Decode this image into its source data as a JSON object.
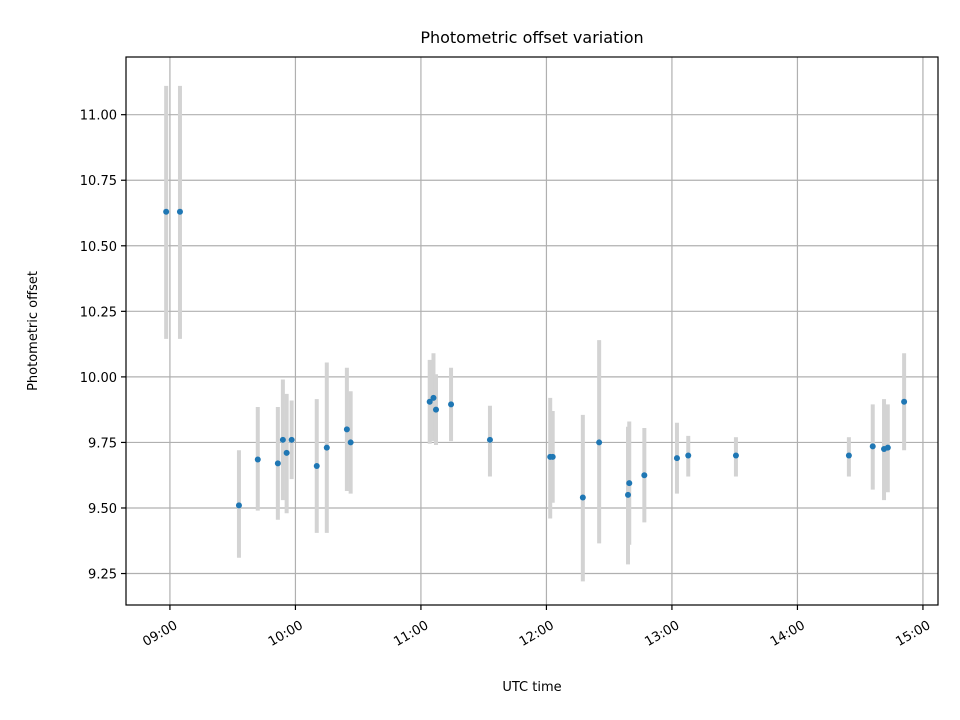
{
  "chart_data": {
    "type": "scatter",
    "title": "Photometric offset variation",
    "xlabel": "UTC time",
    "ylabel": "Photometric offset",
    "grid": true,
    "xlim": [
      8.65,
      15.12
    ],
    "ylim": [
      9.13,
      11.22
    ],
    "xticks": [
      9,
      10,
      11,
      12,
      13,
      14,
      15
    ],
    "xtick_labels": [
      "09:00",
      "10:00",
      "11:00",
      "12:00",
      "13:00",
      "14:00",
      "15:00"
    ],
    "yticks": [
      9.25,
      9.5,
      9.75,
      10.0,
      10.25,
      10.5,
      10.75,
      11.0
    ],
    "ytick_labels": [
      "9.25",
      "9.50",
      "9.75",
      "10.00",
      "10.25",
      "10.50",
      "10.75",
      "11.00"
    ],
    "colors": {
      "point": "#1f77b4",
      "errorbar": "#d3d3d3",
      "grid": "#b0b0b0"
    },
    "series": [
      {
        "name": "offset",
        "points": [
          {
            "x": 8.97,
            "y": 10.63,
            "lo": 10.145,
            "hi": 11.11
          },
          {
            "x": 9.08,
            "y": 10.63,
            "lo": 10.145,
            "hi": 11.11
          },
          {
            "x": 9.55,
            "y": 9.51,
            "lo": 9.31,
            "hi": 9.72
          },
          {
            "x": 9.7,
            "y": 9.685,
            "lo": 9.49,
            "hi": 9.885
          },
          {
            "x": 9.86,
            "y": 9.67,
            "lo": 9.455,
            "hi": 9.885
          },
          {
            "x": 9.9,
            "y": 9.76,
            "lo": 9.53,
            "hi": 9.99
          },
          {
            "x": 9.93,
            "y": 9.71,
            "lo": 9.48,
            "hi": 9.935
          },
          {
            "x": 9.97,
            "y": 9.76,
            "lo": 9.61,
            "hi": 9.91
          },
          {
            "x": 10.17,
            "y": 9.66,
            "lo": 9.405,
            "hi": 9.915
          },
          {
            "x": 10.25,
            "y": 9.73,
            "lo": 9.405,
            "hi": 10.055
          },
          {
            "x": 10.41,
            "y": 9.8,
            "lo": 9.565,
            "hi": 10.035
          },
          {
            "x": 10.44,
            "y": 9.75,
            "lo": 9.555,
            "hi": 9.945
          },
          {
            "x": 11.07,
            "y": 9.905,
            "lo": 9.745,
            "hi": 10.065
          },
          {
            "x": 11.1,
            "y": 9.92,
            "lo": 9.755,
            "hi": 10.09
          },
          {
            "x": 11.12,
            "y": 9.875,
            "lo": 9.74,
            "hi": 10.01
          },
          {
            "x": 11.24,
            "y": 9.895,
            "lo": 9.755,
            "hi": 10.035
          },
          {
            "x": 11.55,
            "y": 9.76,
            "lo": 9.62,
            "hi": 9.89
          },
          {
            "x": 12.03,
            "y": 9.695,
            "lo": 9.46,
            "hi": 9.92
          },
          {
            "x": 12.05,
            "y": 9.695,
            "lo": 9.52,
            "hi": 9.87
          },
          {
            "x": 12.29,
            "y": 9.54,
            "lo": 9.22,
            "hi": 9.855
          },
          {
            "x": 12.42,
            "y": 9.75,
            "lo": 9.365,
            "hi": 10.14
          },
          {
            "x": 12.65,
            "y": 9.55,
            "lo": 9.285,
            "hi": 9.81
          },
          {
            "x": 12.66,
            "y": 9.595,
            "lo": 9.36,
            "hi": 9.83
          },
          {
            "x": 12.78,
            "y": 9.625,
            "lo": 9.445,
            "hi": 9.805
          },
          {
            "x": 13.04,
            "y": 9.69,
            "lo": 9.555,
            "hi": 9.825
          },
          {
            "x": 13.13,
            "y": 9.7,
            "lo": 9.62,
            "hi": 9.775
          },
          {
            "x": 13.51,
            "y": 9.7,
            "lo": 9.62,
            "hi": 9.77
          },
          {
            "x": 14.41,
            "y": 9.7,
            "lo": 9.62,
            "hi": 9.77
          },
          {
            "x": 14.6,
            "y": 9.735,
            "lo": 9.57,
            "hi": 9.895
          },
          {
            "x": 14.69,
            "y": 9.725,
            "lo": 9.53,
            "hi": 9.915
          },
          {
            "x": 14.72,
            "y": 9.73,
            "lo": 9.56,
            "hi": 9.895
          },
          {
            "x": 14.85,
            "y": 9.905,
            "lo": 9.72,
            "hi": 10.09
          }
        ]
      }
    ]
  }
}
